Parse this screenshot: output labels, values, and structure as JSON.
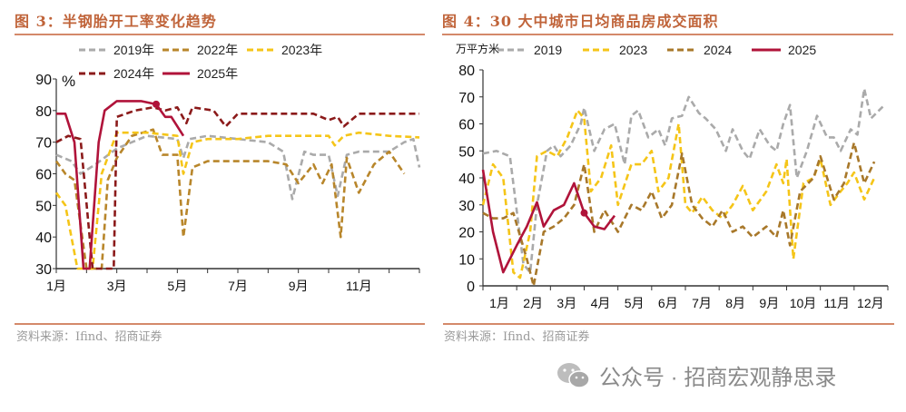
{
  "left": {
    "title": "图 3：半钢胎开工率变化趋势",
    "source": "资料来源：Ifind、招商证券"
  },
  "right": {
    "title": "图 4：30 大中城市日均商品房成交面积",
    "source": "资料来源：Ifind、招商证券"
  },
  "watermark": {
    "text": "公众号 · 招商宏观静思录",
    "icon": "wechat-icon"
  },
  "chart_data": [
    {
      "type": "line",
      "title": "图 3：半钢胎开工率变化趋势",
      "ylabel": "%",
      "ylim": [
        30,
        90
      ],
      "yticks": [
        30,
        40,
        50,
        60,
        70,
        80,
        90
      ],
      "xlim": [
        1,
        13
      ],
      "xticks": [
        {
          "v": 1,
          "label": "1月"
        },
        {
          "v": 3,
          "label": "3月"
        },
        {
          "v": 5,
          "label": "5月"
        },
        {
          "v": 7,
          "label": "7月"
        },
        {
          "v": 9,
          "label": "9月"
        },
        {
          "v": 11,
          "label": "11月"
        }
      ],
      "legend_position": "top",
      "grid": false,
      "series": [
        {
          "name": "2019年",
          "color": "#aaaaaa",
          "dash": true,
          "x": [
            1,
            1.5,
            1.8,
            2.3,
            3,
            3.5,
            4,
            5,
            5.2,
            5.4,
            6,
            7,
            8,
            8.5,
            8.8,
            9.2,
            9.5,
            10,
            10.3,
            10.6,
            11,
            12,
            12.5,
            12.8,
            13
          ],
          "y": [
            66,
            64,
            60,
            63,
            68,
            70,
            72,
            71,
            65,
            71,
            72,
            71,
            70,
            67,
            52,
            67,
            66,
            66,
            53,
            66,
            67,
            67,
            70,
            71,
            62
          ]
        },
        {
          "name": "2022年",
          "color": "#b8862b",
          "dash": true,
          "x": [
            1,
            1.3,
            1.6,
            2.0,
            2.5,
            2.7,
            3.0,
            3.5,
            4.2,
            4.5,
            5.0,
            5.2,
            5.5,
            6,
            7,
            8,
            8.6,
            9,
            9.5,
            9.8,
            10.1,
            10.4,
            10.6,
            11.0,
            11.5,
            12,
            12.5
          ],
          "y": [
            64,
            60,
            58,
            30,
            30,
            58,
            65,
            72,
            74,
            66,
            66,
            40,
            62,
            64,
            64,
            64,
            63,
            57,
            63,
            57,
            63,
            40,
            65,
            54,
            63,
            67,
            60
          ]
        },
        {
          "name": "2023年",
          "color": "#f5c518",
          "dash": true,
          "x": [
            1,
            1.3,
            1.7,
            2.2,
            2.5,
            3,
            4,
            5.0,
            5.2,
            5.5,
            6,
            7,
            8,
            10,
            10.2,
            10.5,
            11,
            12,
            13
          ],
          "y": [
            54,
            50,
            30,
            30,
            60,
            73,
            73,
            72,
            60,
            70,
            71,
            71,
            72,
            72,
            69,
            72,
            73,
            72,
            71.5
          ]
        },
        {
          "name": "2024年",
          "color": "#8b1a1a",
          "dash": true,
          "x": [
            1,
            1.4,
            1.8,
            2.2,
            2.9,
            3.0,
            3.6,
            4.2,
            4.6,
            5.0,
            5.3,
            5.5,
            6.2,
            6.6,
            7,
            9.5,
            10,
            10.3,
            10.5,
            11,
            13
          ],
          "y": [
            70,
            72,
            71,
            30,
            30,
            78,
            80,
            81,
            80,
            81,
            76,
            81,
            80,
            75,
            79,
            79,
            77,
            78,
            75,
            79,
            79
          ]
        },
        {
          "name": "2025年",
          "color": "#b0133a",
          "dash": false,
          "x": [
            1,
            1.3,
            1.6,
            1.9,
            2.1,
            2.4,
            2.6,
            3,
            3.8,
            4.3,
            4.6,
            4.8,
            5.2
          ],
          "y": [
            79,
            79,
            70,
            30,
            30,
            70,
            80,
            83,
            83,
            82,
            78,
            78,
            72
          ],
          "marker": {
            "x": 4.3,
            "y": 82
          }
        }
      ]
    },
    {
      "type": "line",
      "title": "图 4：30 大中城市日均商品房成交面积",
      "ylabel": "万平方米",
      "ylim": [
        0,
        80
      ],
      "yticks": [
        0,
        10,
        20,
        30,
        40,
        50,
        60,
        70,
        80
      ],
      "xlim": [
        1,
        13
      ],
      "xticks": [
        {
          "v": 1,
          "label": "1月"
        },
        {
          "v": 2,
          "label": "2月"
        },
        {
          "v": 3,
          "label": "3月"
        },
        {
          "v": 4,
          "label": "4月"
        },
        {
          "v": 5,
          "label": "5月"
        },
        {
          "v": 6,
          "label": "6月"
        },
        {
          "v": 7,
          "label": "7月"
        },
        {
          "v": 8,
          "label": "8月"
        },
        {
          "v": 9,
          "label": "9月"
        },
        {
          "v": 10,
          "label": "10月"
        },
        {
          "v": 11,
          "label": "11月"
        },
        {
          "v": 12,
          "label": "12月"
        }
      ],
      "legend_position": "top",
      "grid": false,
      "series": [
        {
          "name": "2019",
          "color": "#aaaaaa",
          "dash": true,
          "x": [
            1.0,
            1.4,
            1.8,
            2.2,
            2.4,
            2.6,
            2.9,
            3.1,
            3.3,
            3.6,
            3.9,
            4.0,
            4.3,
            4.6,
            4.9,
            5.2,
            5.4,
            5.6,
            5.9,
            6.2,
            6.4,
            6.6,
            6.9,
            7.1,
            7.4,
            7.6,
            7.9,
            8.2,
            8.4,
            8.7,
            8.9,
            9.2,
            9.5,
            9.7,
            9.9,
            10.1,
            10.3,
            10.6,
            10.9,
            11.2,
            11.4,
            11.6,
            11.9,
            12.1,
            12.3,
            12.5,
            12.9
          ],
          "y": [
            49,
            50,
            48,
            8,
            5,
            30,
            50,
            52,
            48,
            52,
            60,
            66,
            50,
            58,
            60,
            45,
            63,
            65,
            55,
            58,
            52,
            62,
            63,
            70,
            64,
            62,
            58,
            50,
            58,
            50,
            47,
            58,
            52,
            50,
            60,
            67,
            40,
            50,
            63,
            55,
            55,
            50,
            58,
            56,
            73,
            62,
            67
          ]
        },
        {
          "name": "2023",
          "color": "#f5c518",
          "dash": true,
          "x": [
            1.0,
            1.3,
            1.6,
            1.9,
            2.1,
            2.4,
            2.6,
            2.9,
            3.2,
            3.5,
            3.8,
            4.0,
            4.2,
            4.5,
            4.8,
            5.0,
            5.4,
            5.7,
            6.0,
            6.2,
            6.5,
            6.8,
            7.0,
            7.2,
            7.5,
            7.8,
            8.1,
            8.4,
            8.7,
            9.0,
            9.4,
            9.7,
            9.9,
            10.0,
            10.2,
            10.5,
            10.8,
            11.0,
            11.3,
            11.6,
            11.8,
            12.0,
            12.3,
            12.6
          ],
          "y": [
            30,
            45,
            40,
            5,
            3,
            20,
            48,
            50,
            48,
            55,
            65,
            62,
            35,
            40,
            52,
            30,
            45,
            45,
            50,
            35,
            40,
            60,
            30,
            27,
            33,
            28,
            25,
            30,
            37,
            28,
            35,
            45,
            38,
            47,
            10,
            38,
            40,
            47,
            30,
            35,
            38,
            42,
            32,
            40
          ]
        },
        {
          "name": "2024",
          "color": "#a8782a",
          "dash": true,
          "x": [
            1.0,
            1.3,
            1.6,
            1.9,
            2.3,
            2.5,
            2.8,
            3.1,
            3.4,
            3.7,
            4.0,
            4.3,
            4.6,
            5.0,
            5.4,
            5.7,
            6.0,
            6.3,
            6.6,
            6.9,
            7.2,
            7.5,
            7.8,
            8.1,
            8.4,
            8.7,
            9.0,
            9.4,
            9.7,
            9.9,
            10.1,
            10.4,
            10.8,
            11.0,
            11.4,
            11.7,
            12.0,
            12.3,
            12.6
          ],
          "y": [
            27,
            25,
            25,
            27,
            10,
            0,
            20,
            22,
            25,
            30,
            45,
            20,
            28,
            20,
            30,
            28,
            35,
            25,
            30,
            49,
            30,
            25,
            22,
            28,
            20,
            22,
            18,
            22,
            18,
            28,
            15,
            35,
            40,
            48,
            32,
            38,
            53,
            38,
            46
          ]
        },
        {
          "name": "2025",
          "color": "#b0133a",
          "dash": false,
          "x": [
            1.0,
            1.3,
            1.6,
            2.0,
            2.3,
            2.6,
            2.8,
            3.1,
            3.4,
            3.7,
            4.0,
            4.3,
            4.6,
            4.9
          ],
          "y": [
            43,
            20,
            5,
            15,
            22,
            31,
            22,
            28,
            30,
            38,
            27,
            22,
            21,
            26
          ],
          "marker": {
            "x": 4.0,
            "y": 27
          }
        }
      ]
    }
  ]
}
